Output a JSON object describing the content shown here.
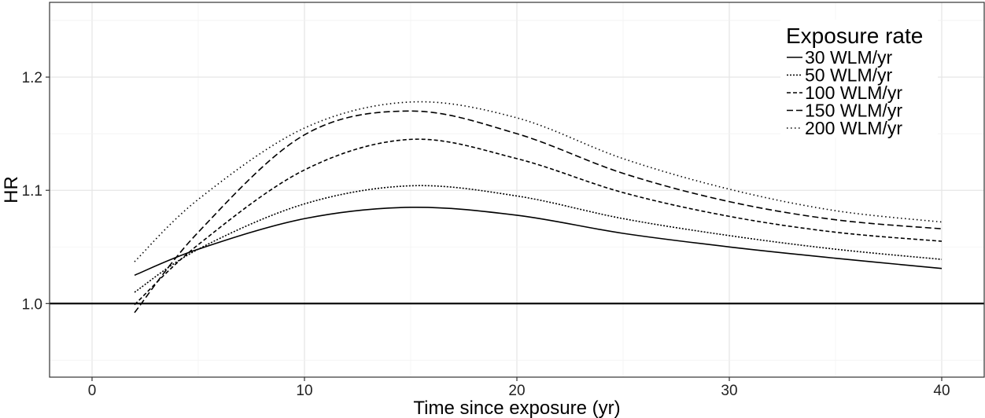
{
  "chart_data": {
    "type": "line",
    "xlabel": "Time since exposure (yr)",
    "ylabel": "HR",
    "xlim": [
      -2,
      42
    ],
    "ylim": [
      0.935,
      1.266
    ],
    "x_ticks": [
      0,
      10,
      20,
      30,
      40
    ],
    "y_ticks": [
      1.0,
      1.1,
      1.2
    ],
    "y_tick_labels": [
      "1.0",
      "1.1",
      "1.2"
    ],
    "grid": true,
    "reference_line": 1.0,
    "legend": {
      "title": "Exposure rate",
      "position": "top-right"
    },
    "x": [
      2,
      5,
      10,
      15,
      20,
      25,
      30,
      35,
      40
    ],
    "series": [
      {
        "name": "30 WLM/yr",
        "dash": "solid",
        "values": [
          1.025,
          1.048,
          1.075,
          1.085,
          1.078,
          1.062,
          1.05,
          1.04,
          1.031
        ]
      },
      {
        "name": "50 WLM/yr",
        "dash": "dotted-fine",
        "values": [
          1.01,
          1.048,
          1.088,
          1.104,
          1.095,
          1.075,
          1.06,
          1.048,
          1.039
        ]
      },
      {
        "name": "100 WLM/yr",
        "dash": "dashed-short",
        "values": [
          0.999,
          1.052,
          1.118,
          1.145,
          1.128,
          1.098,
          1.077,
          1.063,
          1.055
        ]
      },
      {
        "name": "150 WLM/yr",
        "dash": "dashed-long",
        "values": [
          0.992,
          1.063,
          1.149,
          1.17,
          1.15,
          1.115,
          1.09,
          1.074,
          1.066
        ]
      },
      {
        "name": "200 WLM/yr",
        "dash": "dotted",
        "values": [
          1.037,
          1.092,
          1.155,
          1.178,
          1.164,
          1.128,
          1.101,
          1.082,
          1.072
        ]
      }
    ]
  }
}
